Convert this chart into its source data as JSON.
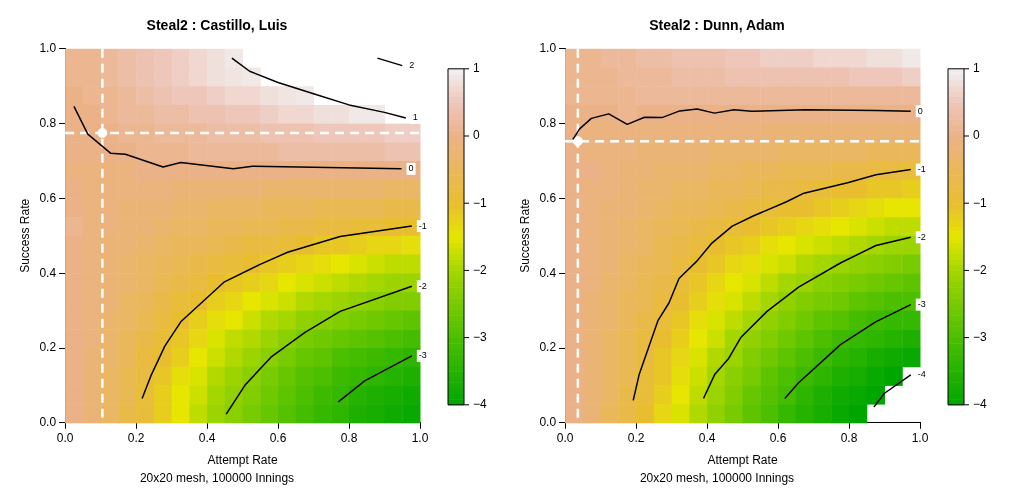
{
  "chart_data": [
    {
      "type": "heatmap",
      "title": "Steal2 : Castillo, Luis",
      "xlabel": "Attempt Rate",
      "ylabel": "Success Rate",
      "annotations": [
        "20x20 mesh, 100000 Innings"
      ],
      "cells": [
        [
          0.1,
          0.1,
          0.2,
          0.3,
          0.4,
          0.5,
          0.6,
          0.7,
          0.8,
          0.9,
          null,
          null,
          null,
          null,
          null,
          null,
          null,
          null,
          null,
          null
        ],
        [
          0.1,
          0.1,
          0.2,
          0.3,
          0.4,
          0.5,
          0.6,
          0.7,
          0.8,
          0.85,
          0.9,
          null,
          null,
          null,
          null,
          null,
          null,
          null,
          null,
          null
        ],
        [
          0.0,
          0.1,
          0.1,
          0.2,
          0.3,
          0.4,
          0.5,
          0.5,
          0.6,
          0.7,
          0.7,
          0.8,
          0.85,
          0.9,
          null,
          null,
          null,
          null,
          null,
          null
        ],
        [
          0.0,
          0.0,
          0.1,
          0.2,
          0.2,
          0.3,
          0.3,
          0.4,
          0.4,
          0.5,
          0.5,
          0.6,
          0.7,
          0.7,
          0.8,
          0.8,
          0.9,
          0.9,
          null,
          null
        ],
        [
          0.0,
          0.0,
          0.0,
          0.1,
          0.1,
          0.2,
          0.2,
          0.2,
          0.3,
          0.3,
          0.3,
          0.4,
          0.4,
          0.4,
          0.5,
          0.5,
          0.5,
          0.5,
          0.6,
          0.6
        ],
        [
          0.0,
          0.0,
          0.0,
          0.0,
          0.1,
          0.1,
          0.1,
          0.2,
          0.2,
          0.2,
          0.2,
          0.2,
          0.3,
          0.3,
          0.3,
          0.3,
          0.3,
          0.3,
          0.4,
          0.4
        ],
        [
          -0.1,
          -0.1,
          -0.1,
          -0.1,
          0.0,
          0.0,
          0.0,
          0.0,
          0.0,
          0.0,
          0.0,
          0.0,
          0.0,
          0.0,
          0.0,
          0.0,
          0.0,
          0.0,
          0.0,
          0.0
        ],
        [
          0.0,
          -0.1,
          -0.1,
          -0.1,
          -0.1,
          -0.1,
          -0.2,
          -0.2,
          -0.2,
          -0.2,
          -0.2,
          -0.3,
          -0.3,
          -0.3,
          -0.3,
          -0.3,
          -0.3,
          -0.3,
          -0.4,
          -0.4
        ],
        [
          0.0,
          -0.1,
          -0.1,
          -0.2,
          -0.2,
          -0.2,
          -0.3,
          -0.3,
          -0.4,
          -0.4,
          -0.4,
          -0.5,
          -0.5,
          -0.5,
          -0.6,
          -0.6,
          -0.6,
          -0.6,
          -0.7,
          -0.7
        ],
        [
          0.1,
          -0.1,
          -0.1,
          -0.2,
          -0.2,
          -0.3,
          -0.4,
          -0.4,
          -0.5,
          -0.5,
          -0.6,
          -0.6,
          -0.7,
          -0.7,
          -0.8,
          -0.8,
          -0.9,
          -0.9,
          -1.0,
          -1.0
        ],
        [
          0.0,
          -0.1,
          -0.2,
          -0.2,
          -0.3,
          -0.4,
          -0.5,
          -0.5,
          -0.6,
          -0.7,
          -0.8,
          -0.8,
          -0.9,
          -1.0,
          -1.1,
          -1.1,
          -1.2,
          -1.3,
          -1.3,
          -1.4
        ],
        [
          0.0,
          -0.1,
          -0.2,
          -0.3,
          -0.4,
          -0.5,
          -0.6,
          -0.7,
          -0.8,
          -0.9,
          -1.0,
          -1.1,
          -1.2,
          -1.3,
          -1.4,
          -1.5,
          -1.6,
          -1.7,
          -1.8,
          -1.8
        ],
        [
          0.0,
          -0.1,
          -0.2,
          -0.3,
          -0.4,
          -0.6,
          -0.7,
          -0.8,
          -1.0,
          -1.1,
          -1.2,
          -1.3,
          -1.5,
          -1.6,
          -1.7,
          -1.8,
          -1.9,
          -2.0,
          -2.1,
          -2.1
        ],
        [
          0.0,
          -0.1,
          -0.2,
          -0.4,
          -0.5,
          -0.7,
          -0.9,
          -1.0,
          -1.2,
          -1.3,
          -1.5,
          -1.6,
          -1.7,
          -1.9,
          -2.0,
          -2.1,
          -2.2,
          -2.3,
          -2.4,
          -2.4
        ],
        [
          0.0,
          -0.1,
          -0.3,
          -0.4,
          -0.6,
          -0.8,
          -1.0,
          -1.2,
          -1.4,
          -1.5,
          -1.7,
          -1.9,
          -2.0,
          -2.2,
          -2.3,
          -2.4,
          -2.5,
          -2.6,
          -2.7,
          -2.8
        ],
        [
          0.0,
          -0.1,
          -0.3,
          -0.5,
          -0.7,
          -0.9,
          -1.1,
          -1.3,
          -1.6,
          -1.8,
          -1.9,
          -2.1,
          -2.3,
          -2.5,
          -2.6,
          -2.7,
          -2.8,
          -2.9,
          -3.0,
          -3.1
        ],
        [
          0.0,
          -0.2,
          -0.3,
          -0.5,
          -0.8,
          -1.0,
          -1.2,
          -1.5,
          -1.7,
          -1.9,
          -2.1,
          -2.3,
          -2.5,
          -2.7,
          -2.8,
          -3.0,
          -3.1,
          -3.2,
          -3.3,
          -3.4
        ],
        [
          0.0,
          -0.2,
          -0.4,
          -0.6,
          -0.8,
          -1.1,
          -1.4,
          -1.6,
          -1.9,
          -2.1,
          -2.3,
          -2.5,
          -2.7,
          -2.9,
          -3.0,
          -3.2,
          -3.3,
          -3.4,
          -3.5,
          -3.6
        ],
        [
          0.0,
          -0.2,
          -0.4,
          -0.6,
          -0.9,
          -1.2,
          -1.5,
          -1.7,
          -2.0,
          -2.2,
          -2.4,
          -2.6,
          -2.8,
          -3.0,
          -3.2,
          -3.3,
          -3.5,
          -3.6,
          -3.7,
          -3.8
        ],
        [
          0.0,
          -0.2,
          -0.4,
          -0.7,
          -0.9,
          -1.2,
          -1.5,
          -1.8,
          -2.1,
          -2.3,
          -2.5,
          -2.7,
          -2.9,
          -3.1,
          -3.3,
          -3.4,
          -3.6,
          -3.7,
          -3.8,
          -3.9
        ]
      ],
      "clim": [
        -4,
        1
      ],
      "cticks": [
        {
          "value": -4,
          "label": "−4"
        },
        {
          "value": -3,
          "label": "−3"
        },
        {
          "value": -2,
          "label": "−2"
        },
        {
          "value": -1,
          "label": "−1"
        },
        {
          "value": 0,
          "label": "0"
        },
        {
          "value": 1,
          "label": "1"
        }
      ],
      "xlim": [
        0,
        1
      ],
      "ylim": [
        0,
        1
      ],
      "xticks": [
        {
          "value": 0,
          "label": "0.0"
        },
        {
          "value": 0.2,
          "label": "0.2"
        },
        {
          "value": 0.4,
          "label": "0.4"
        },
        {
          "value": 0.6,
          "label": "0.6"
        },
        {
          "value": 0.8,
          "label": "0.8"
        },
        {
          "value": 1,
          "label": "1.0"
        }
      ],
      "yticks": [
        {
          "value": 0,
          "label": "0.0"
        },
        {
          "value": 0.2,
          "label": "0.2"
        },
        {
          "value": 0.4,
          "label": "0.4"
        },
        {
          "value": 0.6,
          "label": "0.6"
        },
        {
          "value": 0.8,
          "label": "0.8"
        },
        {
          "value": 1,
          "label": "1.0"
        }
      ],
      "ref_lines": [
        {
          "axis": "x",
          "value": 0.105,
          "color": "#ffffff",
          "line_style": "dashed"
        },
        {
          "axis": "y",
          "value": 0.775,
          "color": "#ffffff",
          "line_style": "dashed"
        }
      ],
      "series": [
        {
          "type": "line",
          "name": "2",
          "color": "#000000",
          "x": [
            0.88,
            0.95
          ],
          "values": [
            0.975,
            0.955
          ]
        },
        {
          "type": "line",
          "name": "1",
          "color": "#000000",
          "x": [
            0.47,
            0.52,
            0.6,
            0.7,
            0.8,
            0.9,
            0.96
          ],
          "values": [
            0.975,
            0.94,
            0.91,
            0.88,
            0.85,
            0.83,
            0.815
          ]
        },
        {
          "type": "line",
          "name": "0",
          "color": "#000000",
          "x": [
            0.025,
            0.064,
            0.128,
            0.17,
            0.276,
            0.326,
            0.474,
            0.528,
            0.948
          ],
          "values": [
            0.846,
            0.772,
            0.721,
            0.718,
            0.684,
            0.696,
            0.679,
            0.686,
            0.679
          ]
        },
        {
          "type": "line",
          "name": "-1",
          "color": "#000000",
          "x": [
            0.217,
            0.242,
            0.281,
            0.326,
            0.449,
            0.548,
            0.627,
            0.775,
            0.977
          ],
          "values": [
            0.065,
            0.126,
            0.205,
            0.27,
            0.377,
            0.423,
            0.456,
            0.498,
            0.526
          ]
        },
        {
          "type": "line",
          "name": "-2",
          "color": "#000000",
          "x": [
            0.454,
            0.508,
            0.582,
            0.676,
            0.775,
            0.977
          ],
          "values": [
            0.023,
            0.102,
            0.177,
            0.242,
            0.298,
            0.365
          ]
        },
        {
          "type": "line",
          "name": "-3",
          "color": "#000000",
          "x": [
            0.77,
            0.844,
            0.977
          ],
          "values": [
            0.056,
            0.112,
            0.179
          ]
        },
        {
          "type": "scatter",
          "color": "#ffffff",
          "marker": "circle",
          "x": [
            0.105
          ],
          "values": [
            0.775
          ]
        }
      ]
    },
    {
      "type": "heatmap",
      "title": "Steal2 : Dunn, Adam",
      "xlabel": "Attempt Rate",
      "ylabel": "Success Rate",
      "annotations": [
        "20x20 mesh, 100000 Innings"
      ],
      "cells": [
        [
          0.1,
          0.1,
          0.2,
          0.2,
          0.3,
          0.3,
          0.4,
          0.4,
          0.4,
          0.5,
          0.5,
          0.6,
          0.6,
          0.6,
          0.7,
          0.7,
          0.7,
          0.8,
          0.8,
          0.9
        ],
        [
          0.1,
          0.1,
          0.1,
          0.2,
          0.2,
          0.2,
          0.3,
          0.3,
          0.3,
          0.4,
          0.4,
          0.4,
          0.4,
          0.4,
          0.4,
          0.4,
          0.5,
          0.5,
          0.5,
          0.6
        ],
        [
          0.1,
          0.1,
          0.1,
          0.1,
          0.2,
          0.2,
          0.2,
          0.2,
          0.2,
          0.2,
          0.2,
          0.2,
          0.2,
          0.2,
          0.2,
          0.2,
          0.2,
          0.2,
          0.2,
          0.2
        ],
        [
          0.0,
          0.0,
          0.0,
          0.1,
          0.0,
          0.0,
          0.0,
          0.0,
          0.0,
          0.0,
          0.0,
          0.0,
          0.0,
          0.0,
          0.0,
          0.0,
          0.0,
          0.0,
          0.0,
          0.0
        ],
        [
          0.0,
          -0.1,
          -0.1,
          -0.1,
          -0.1,
          -0.1,
          -0.1,
          -0.1,
          -0.1,
          -0.1,
          -0.1,
          -0.2,
          -0.2,
          -0.2,
          -0.2,
          -0.2,
          -0.2,
          -0.2,
          -0.2,
          -0.2
        ],
        [
          0.0,
          -0.1,
          -0.1,
          -0.1,
          -0.2,
          -0.2,
          -0.2,
          -0.2,
          -0.3,
          -0.3,
          -0.3,
          -0.3,
          -0.4,
          -0.4,
          -0.4,
          -0.4,
          -0.4,
          -0.5,
          -0.5,
          -0.5
        ],
        [
          0.0,
          0.0,
          -0.1,
          -0.2,
          -0.2,
          -0.3,
          -0.3,
          -0.3,
          -0.4,
          -0.4,
          -0.5,
          -0.5,
          -0.6,
          -0.6,
          -0.6,
          -0.7,
          -0.7,
          -0.8,
          -0.8,
          -0.9
        ],
        [
          0.0,
          -0.1,
          -0.1,
          -0.2,
          -0.3,
          -0.3,
          -0.4,
          -0.4,
          -0.5,
          -0.5,
          -0.6,
          -0.7,
          -0.7,
          -0.8,
          -0.9,
          -1.0,
          -1.0,
          -1.1,
          -1.1,
          -1.2
        ],
        [
          0.0,
          -0.1,
          -0.2,
          -0.2,
          -0.3,
          -0.4,
          -0.5,
          -0.5,
          -0.6,
          -0.7,
          -0.8,
          -0.9,
          -1.0,
          -1.0,
          -1.1,
          -1.2,
          -1.3,
          -1.4,
          -1.5,
          -1.5
        ],
        [
          0.0,
          -0.1,
          -0.2,
          -0.3,
          -0.4,
          -0.5,
          -0.6,
          -0.7,
          -0.8,
          -0.9,
          -1.0,
          -1.1,
          -1.2,
          -1.3,
          -1.4,
          -1.5,
          -1.6,
          -1.7,
          -1.8,
          -1.8
        ],
        [
          0.0,
          -0.1,
          -0.2,
          -0.3,
          -0.4,
          -0.6,
          -0.7,
          -0.8,
          -1.0,
          -1.1,
          -1.2,
          -1.4,
          -1.5,
          -1.6,
          -1.7,
          -1.8,
          -1.9,
          -2.0,
          -2.1,
          -2.1
        ],
        [
          0.0,
          -0.1,
          -0.2,
          -0.4,
          -0.5,
          -0.6,
          -0.8,
          -1.0,
          -1.1,
          -1.3,
          -1.4,
          -1.6,
          -1.7,
          -1.9,
          -2.0,
          -2.1,
          -2.2,
          -2.3,
          -2.4,
          -2.5
        ],
        [
          0.0,
          -0.1,
          -0.3,
          -0.4,
          -0.6,
          -0.7,
          -0.9,
          -1.1,
          -1.3,
          -1.5,
          -1.6,
          -1.8,
          -2.0,
          -2.1,
          -2.3,
          -2.4,
          -2.5,
          -2.6,
          -2.7,
          -2.8
        ],
        [
          0.0,
          -0.2,
          -0.3,
          -0.5,
          -0.6,
          -0.8,
          -1.0,
          -1.2,
          -1.4,
          -1.6,
          -1.8,
          -2.0,
          -2.2,
          -2.4,
          -2.5,
          -2.6,
          -2.8,
          -2.9,
          -3.0,
          -3.0
        ],
        [
          0.0,
          -0.2,
          -0.3,
          -0.5,
          -0.7,
          -0.9,
          -1.1,
          -1.4,
          -1.6,
          -1.8,
          -2.0,
          -2.2,
          -2.4,
          -2.6,
          -2.8,
          -2.9,
          -3.1,
          -3.2,
          -3.3,
          -3.3
        ],
        [
          0.0,
          -0.2,
          -0.4,
          -0.6,
          -0.8,
          -1.0,
          -1.2,
          -1.5,
          -1.7,
          -2.0,
          -2.2,
          -2.4,
          -2.6,
          -2.8,
          -3.0,
          -3.2,
          -3.3,
          -3.4,
          -3.5,
          -3.6
        ],
        [
          0.0,
          -0.2,
          -0.4,
          -0.6,
          -0.8,
          -1.1,
          -1.3,
          -1.6,
          -1.9,
          -2.1,
          -2.4,
          -2.6,
          -2.8,
          -3.0,
          -3.2,
          -3.4,
          -3.5,
          -3.7,
          -3.8,
          -3.9
        ],
        [
          0.0,
          -0.2,
          -0.4,
          -0.6,
          -0.9,
          -1.1,
          -1.4,
          -1.7,
          -2.0,
          -2.3,
          -2.5,
          -2.8,
          -3.0,
          -3.2,
          -3.4,
          -3.6,
          -3.7,
          -3.9,
          -4.0,
          null
        ],
        [
          0.0,
          -0.2,
          -0.4,
          -0.7,
          -0.9,
          -1.2,
          -1.5,
          -1.8,
          -2.1,
          -2.4,
          -2.7,
          -2.9,
          -3.1,
          -3.4,
          -3.6,
          -3.8,
          -3.9,
          -4.0,
          null,
          null
        ],
        [
          0.0,
          -0.2,
          -0.5,
          -0.7,
          -1.0,
          -1.3,
          -1.6,
          -1.9,
          -2.2,
          -2.5,
          -2.8,
          -3.0,
          -3.3,
          -3.5,
          -3.7,
          -3.9,
          -4.0,
          null,
          null,
          null
        ]
      ],
      "clim": [
        -4,
        1
      ],
      "cticks": [
        {
          "value": -4,
          "label": "−4"
        },
        {
          "value": -3,
          "label": "−3"
        },
        {
          "value": -2,
          "label": "−2"
        },
        {
          "value": -1,
          "label": "−1"
        },
        {
          "value": 0,
          "label": "0"
        },
        {
          "value": 1,
          "label": "1"
        }
      ],
      "xlim": [
        0,
        1
      ],
      "ylim": [
        0,
        1
      ],
      "xticks": [
        {
          "value": 0,
          "label": "0.0"
        },
        {
          "value": 0.2,
          "label": "0.2"
        },
        {
          "value": 0.4,
          "label": "0.4"
        },
        {
          "value": 0.6,
          "label": "0.6"
        },
        {
          "value": 0.8,
          "label": "0.8"
        },
        {
          "value": 1,
          "label": "1.0"
        }
      ],
      "yticks": [
        {
          "value": 0,
          "label": "0.0"
        },
        {
          "value": 0.2,
          "label": "0.2"
        },
        {
          "value": 0.4,
          "label": "0.4"
        },
        {
          "value": 0.6,
          "label": "0.6"
        },
        {
          "value": 0.8,
          "label": "0.8"
        },
        {
          "value": 1,
          "label": "1.0"
        }
      ],
      "ref_lines": [
        {
          "axis": "x",
          "value": 0.036,
          "color": "#ffffff",
          "line_style": "dashed"
        },
        {
          "axis": "y",
          "value": 0.753,
          "color": "#ffffff",
          "line_style": "dashed"
        }
      ],
      "series": [
        {
          "type": "line",
          "name": "0",
          "color": "#000000",
          "x": [
            0.022,
            0.041,
            0.074,
            0.123,
            0.175,
            0.224,
            0.273,
            0.323,
            0.372,
            0.421,
            0.476,
            0.525,
            0.678,
            0.875,
            0.974
          ],
          "values": [
            0.758,
            0.786,
            0.814,
            0.826,
            0.798,
            0.817,
            0.816,
            0.834,
            0.839,
            0.828,
            0.837,
            0.833,
            0.837,
            0.835,
            0.833
          ]
        },
        {
          "type": "line",
          "name": "-1",
          "color": "#000000",
          "x": [
            0.192,
            0.209,
            0.262,
            0.293,
            0.321,
            0.372,
            0.412,
            0.471,
            0.53,
            0.624,
            0.673,
            0.796,
            0.876,
            0.974
          ],
          "values": [
            0.06,
            0.13,
            0.274,
            0.321,
            0.386,
            0.433,
            0.479,
            0.526,
            0.553,
            0.591,
            0.614,
            0.642,
            0.663,
            0.677
          ]
        },
        {
          "type": "line",
          "name": "-2",
          "color": "#000000",
          "x": [
            0.39,
            0.422,
            0.461,
            0.495,
            0.569,
            0.658,
            0.777,
            0.876,
            0.974
          ],
          "values": [
            0.065,
            0.13,
            0.172,
            0.228,
            0.298,
            0.363,
            0.428,
            0.474,
            0.496
          ]
        },
        {
          "type": "line",
          "name": "-3",
          "color": "#000000",
          "x": [
            0.619,
            0.658,
            0.776,
            0.875,
            0.974
          ],
          "values": [
            0.065,
            0.107,
            0.209,
            0.27,
            0.316
          ]
        },
        {
          "type": "line",
          "name": "-4",
          "color": "#000000",
          "x": [
            0.87,
            0.9,
            0.974
          ],
          "values": [
            0.042,
            0.079,
            0.128
          ]
        },
        {
          "type": "scatter",
          "color": "#ffffff",
          "marker": "circle",
          "x": [
            0.036
          ],
          "values": [
            0.753
          ]
        }
      ]
    }
  ]
}
